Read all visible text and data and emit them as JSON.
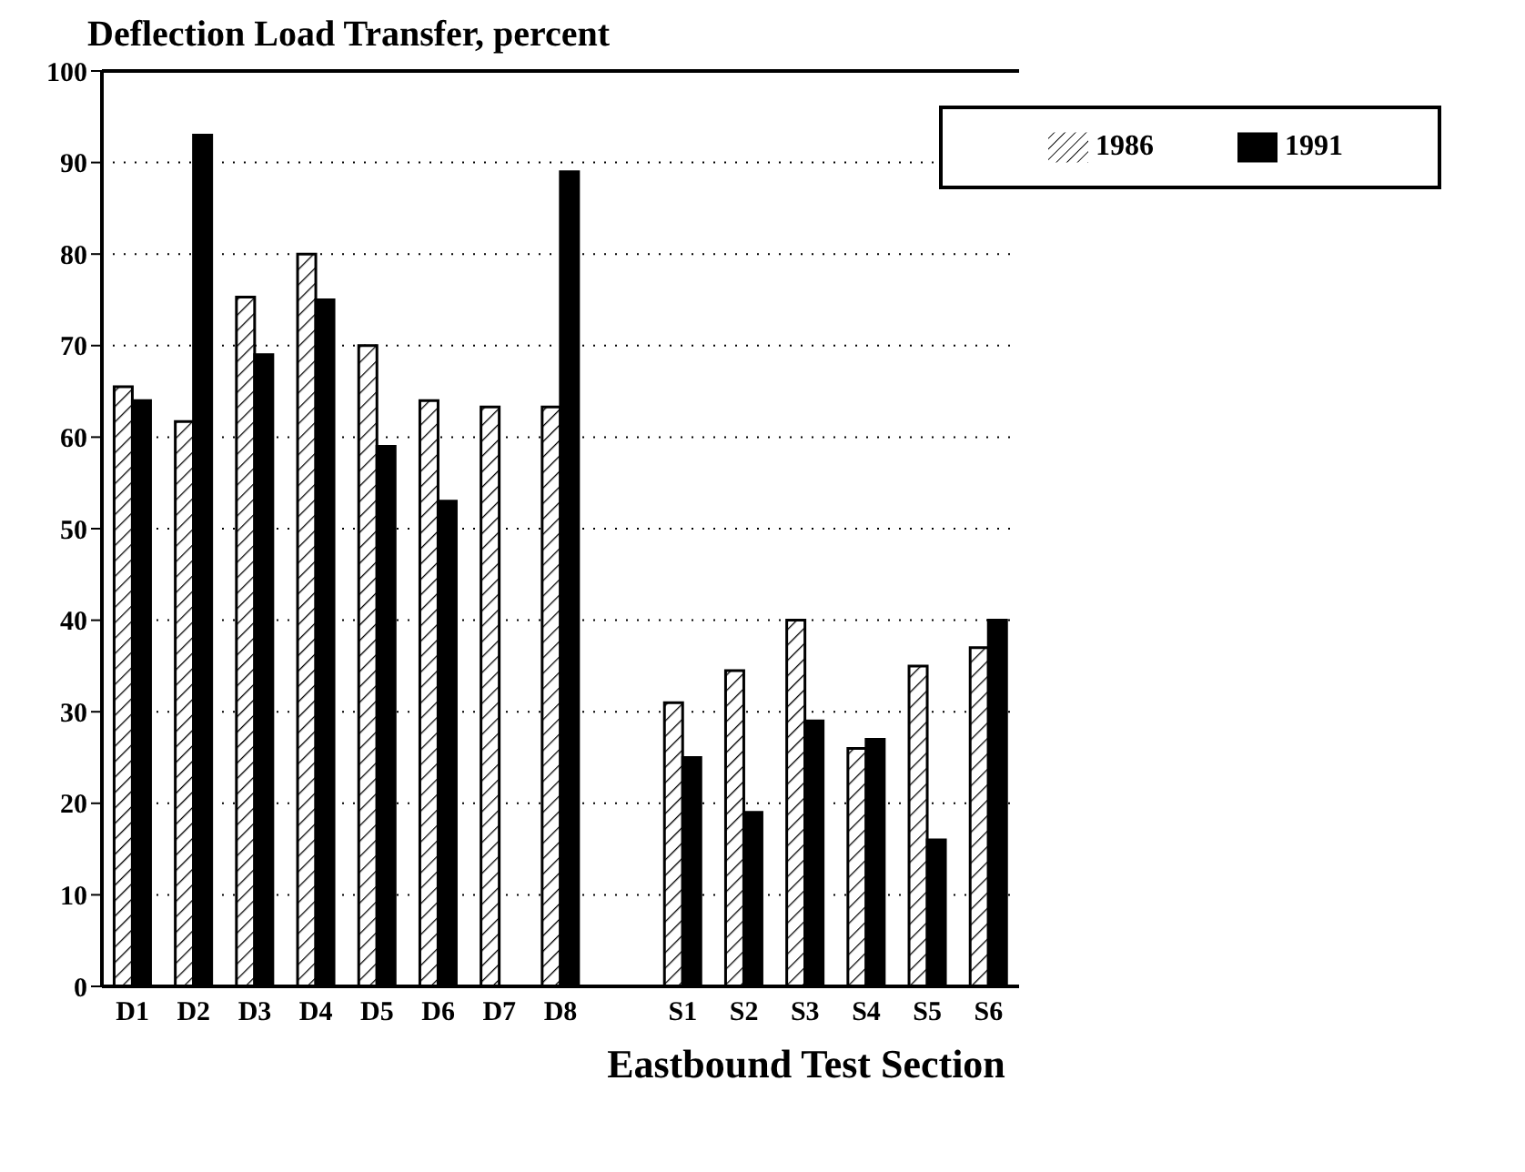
{
  "chart_data": {
    "type": "bar",
    "title": "Deflection Load Transfer, percent",
    "xlabel": "Eastbound Test Section",
    "categories": [
      "D1",
      "D2",
      "D3",
      "D4",
      "D5",
      "D6",
      "D7",
      "D8",
      null,
      "S1",
      "S2",
      "S3",
      "S4",
      "S5",
      "S6"
    ],
    "series": [
      {
        "name": "1986",
        "color": "#000000",
        "values": [
          65.5,
          61.7,
          75.3,
          80,
          70,
          64,
          63.3,
          63.3,
          null,
          31,
          34.5,
          40,
          26,
          35,
          37
        ]
      },
      {
        "name": "1991",
        "color": "#000000",
        "values": [
          64,
          93,
          69,
          75,
          59,
          53,
          null,
          89,
          null,
          25,
          19,
          29,
          27,
          16,
          40
        ]
      }
    ],
    "ylim": [
      0,
      100
    ],
    "yticks": [
      0,
      10,
      20,
      30,
      40,
      50,
      60,
      70,
      80,
      90,
      100
    ],
    "grid": "y",
    "legend": "top right"
  }
}
